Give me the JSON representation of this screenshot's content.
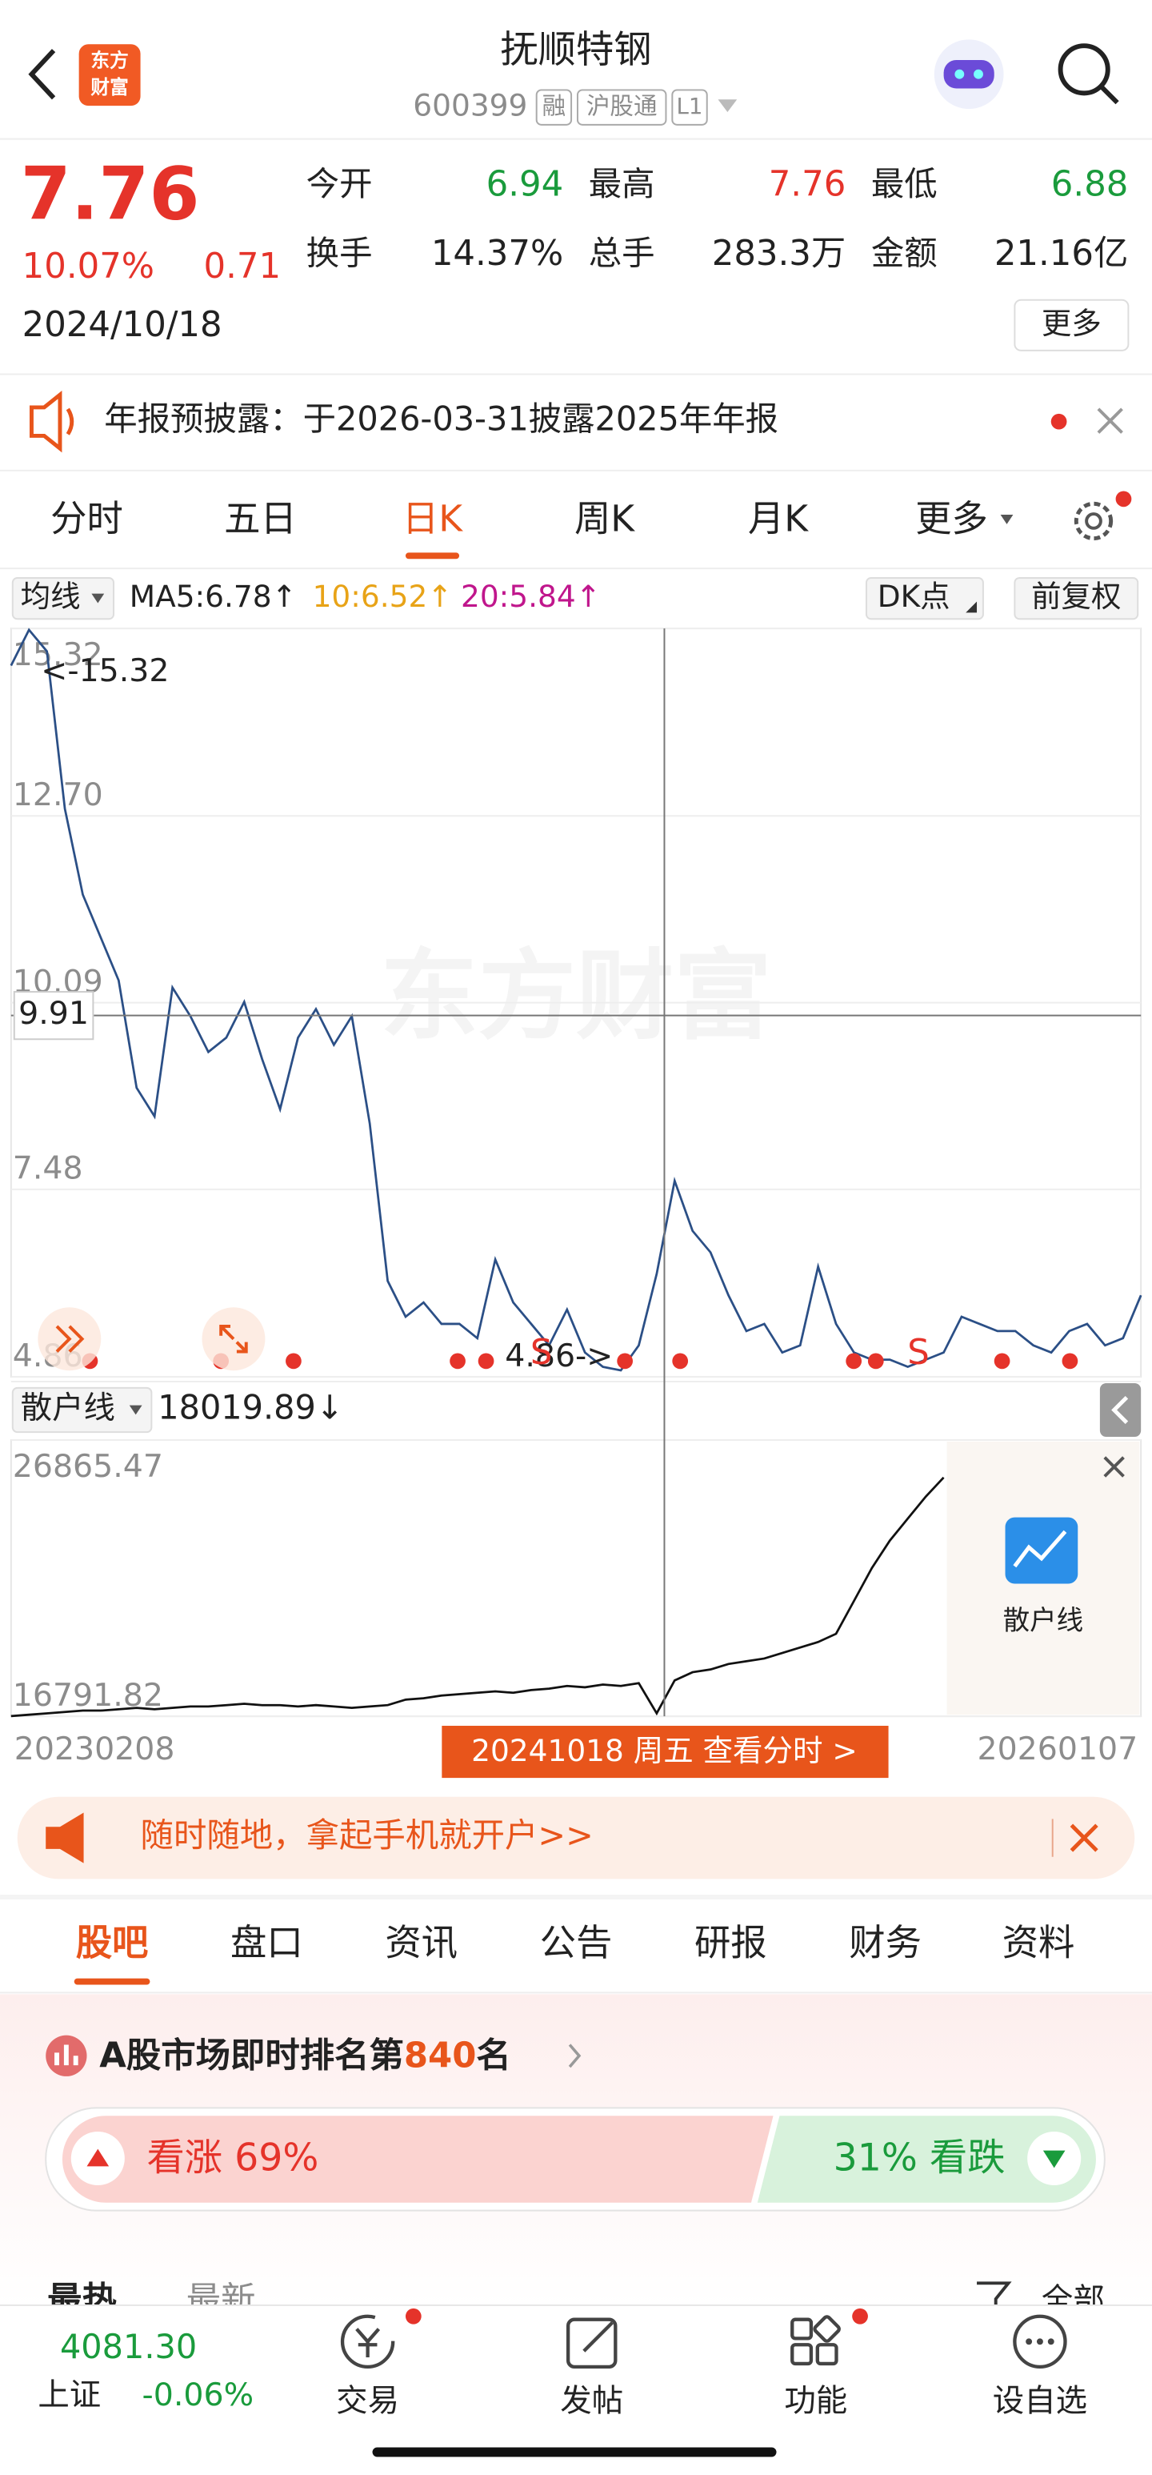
{
  "header": {
    "logo": [
      "东方",
      "财富"
    ],
    "title": "抚顺特钢",
    "code": "600399",
    "tags": [
      "融",
      "沪股通",
      "L1"
    ]
  },
  "quote": {
    "price": "7.76",
    "change_pct": "10.07%",
    "change": "0.71",
    "date": "2024/10/18",
    "stats": [
      {
        "label": "今开",
        "value": "6.94"
      },
      {
        "label": "最高",
        "value": "7.76"
      },
      {
        "label": "最低",
        "value": "6.88"
      },
      {
        "label": "换手",
        "value": "14.37%"
      },
      {
        "label": "总手",
        "value": "283.3万"
      },
      {
        "label": "金额",
        "value": "21.16亿"
      }
    ],
    "more": "更多"
  },
  "notice": "年报预披露：于2026-03-31披露2025年年报",
  "tabs": {
    "items": [
      "分时",
      "五日",
      "日K",
      "周K",
      "月K",
      "更多"
    ],
    "active": 2
  },
  "indicators": {
    "selector": "均线",
    "ma5": "MA5:6.78↑",
    "ma10": "10:6.52↑",
    "ma20": "20:5.84↑",
    "dk": "DK点",
    "adjust": "前复权"
  },
  "price_chart": {
    "type": "line",
    "watermark": "东方财富",
    "color": "#2b4f86",
    "ylim": [
      4.86,
      15.32
    ],
    "yticks": [
      15.32,
      {
        "value": 12.7,
        "label": "12.70"
      },
      10.09,
      7.48,
      4.86
    ],
    "cursor_value": 9.91,
    "high_label": "<-15.32",
    "low_label": "4.86->",
    "signals": [
      "S",
      "S"
    ],
    "values": [
      14.8,
      15.3,
      15.0,
      12.8,
      11.6,
      11.0,
      10.4,
      8.9,
      8.5,
      10.3,
      9.9,
      9.4,
      9.6,
      10.1,
      9.3,
      8.6,
      9.6,
      10.0,
      9.5,
      9.9,
      8.4,
      6.2,
      5.7,
      5.9,
      5.6,
      5.6,
      5.4,
      6.5,
      5.9,
      5.6,
      5.3,
      5.8,
      5.2,
      5.0,
      4.95,
      5.3,
      6.3,
      7.6,
      6.9,
      6.6,
      6.0,
      5.5,
      5.6,
      5.2,
      5.3,
      6.4,
      5.6,
      5.2,
      5.1,
      5.1,
      5.0,
      5.1,
      5.2,
      5.7,
      5.6,
      5.5,
      5.5,
      5.3,
      5.2,
      5.5,
      5.6,
      5.3,
      5.4,
      6.0
    ]
  },
  "retail_chart": {
    "type": "line",
    "selector": "散户线",
    "current": "18019.89↓",
    "badge": "散户线",
    "color": "#111111",
    "ylim": [
      16791.82,
      26865.47
    ],
    "yticks": [
      26865.47,
      16791.82
    ],
    "values": [
      16800,
      16850,
      16900,
      16950,
      17000,
      17000,
      17050,
      17100,
      17050,
      17100,
      17150,
      17150,
      17200,
      17250,
      17200,
      17200,
      17150,
      17200,
      17150,
      17100,
      17150,
      17200,
      17400,
      17450,
      17550,
      17600,
      17650,
      17700,
      17650,
      17750,
      17800,
      17900,
      17850,
      17950,
      17900,
      18000,
      16900,
      18100,
      18400,
      18500,
      18700,
      18800,
      18900,
      19100,
      19300,
      19500,
      19800,
      21000,
      22200,
      23200,
      24000,
      24800,
      25500
    ],
    "start_date": "20230208",
    "end_date": "20260107",
    "cursor_label": "20241018 周五 查看分时 >"
  },
  "banner": "随时随地，拿起手机就开户>>",
  "content_tabs": {
    "items": [
      "股吧",
      "盘口",
      "资讯",
      "公告",
      "研报",
      "财务",
      "资料"
    ],
    "active": 0
  },
  "ranking": {
    "prefix": "A股市场即时排名第",
    "rank": "840",
    "suffix": "名"
  },
  "sentiment": {
    "bull": "看涨 69%",
    "bear": "31% 看跌"
  },
  "feed_tabs": {
    "items": [
      "最热",
      "最新"
    ],
    "filter": "全部"
  },
  "bottom_bar": {
    "index_value": "4081.30",
    "index_name": "上证",
    "index_change": "-0.06%",
    "nav": [
      "交易",
      "发帖",
      "功能",
      "设自选"
    ]
  }
}
